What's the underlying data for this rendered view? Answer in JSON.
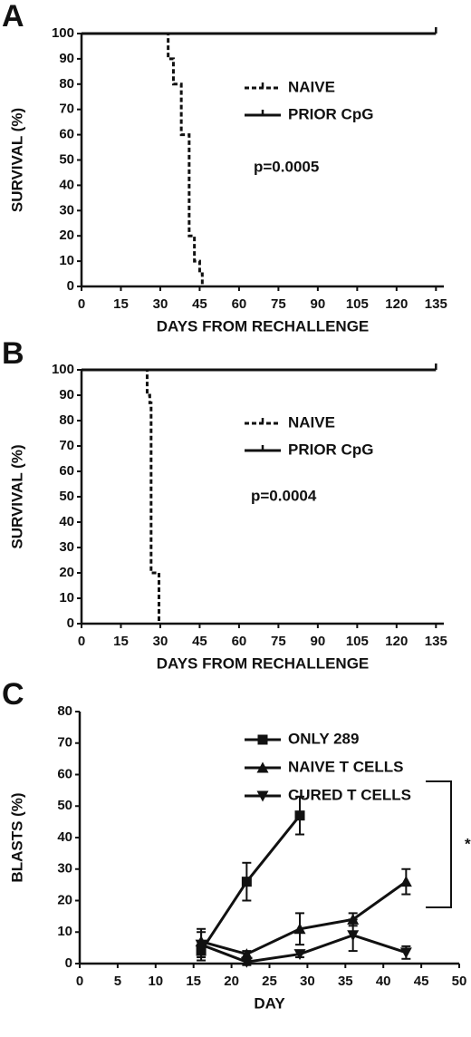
{
  "chart_data": [
    {
      "type": "step",
      "label": "A",
      "xlabel": "DAYS FROM RECHALLENGE",
      "ylabel": "SURVIVAL (%)",
      "xlim": [
        0,
        138
      ],
      "xticks": [
        0,
        15,
        30,
        45,
        60,
        75,
        90,
        105,
        120,
        135
      ],
      "ylim": [
        0,
        100
      ],
      "yticks": [
        0,
        10,
        20,
        30,
        40,
        50,
        60,
        70,
        80,
        90,
        100
      ],
      "annotations": [
        "p=0.0005"
      ],
      "series": [
        {
          "name": "NAIVE",
          "color": "#111111",
          "style": "dashed",
          "x": [
            32,
            33,
            35,
            38,
            41,
            43,
            45,
            46
          ],
          "values": [
            100,
            90,
            80,
            60,
            20,
            10,
            5,
            0
          ]
        },
        {
          "name": "PRIOR CpG",
          "color": "#111111",
          "style": "solid",
          "x": [
            0,
            135
          ],
          "values": [
            100,
            100
          ]
        }
      ]
    },
    {
      "type": "step",
      "label": "B",
      "xlabel": "DAYS FROM RECHALLENGE",
      "ylabel": "SURVIVAL (%)",
      "xlim": [
        0,
        138
      ],
      "xticks": [
        0,
        15,
        30,
        45,
        60,
        75,
        90,
        105,
        120,
        135
      ],
      "ylim": [
        0,
        100
      ],
      "yticks": [
        0,
        10,
        20,
        30,
        40,
        50,
        60,
        70,
        80,
        90,
        100
      ],
      "annotations": [
        "p=0.0004"
      ],
      "series": [
        {
          "name": "NAIVE",
          "color": "#111111",
          "style": "dashed",
          "x": [
            24,
            25,
            26,
            26.5,
            29.5
          ],
          "values": [
            100,
            90,
            87,
            20,
            0
          ]
        },
        {
          "name": "PRIOR CpG",
          "color": "#111111",
          "style": "solid",
          "x": [
            0,
            135
          ],
          "values": [
            100,
            100
          ]
        }
      ]
    },
    {
      "type": "line",
      "label": "C",
      "xlabel": "DAY",
      "ylabel": "BLASTS (%)",
      "xlim": [
        0,
        50
      ],
      "xticks": [
        0,
        5,
        10,
        15,
        20,
        25,
        30,
        35,
        40,
        45,
        50
      ],
      "ylim": [
        0,
        80
      ],
      "yticks": [
        0,
        10,
        20,
        30,
        40,
        50,
        60,
        70,
        80
      ],
      "annotations": [
        "*"
      ],
      "series": [
        {
          "name": "ONLY 289",
          "color": "#111111",
          "marker": "square",
          "x": [
            16,
            22,
            29
          ],
          "values": [
            4,
            26,
            47
          ],
          "err": [
            3,
            6,
            6
          ]
        },
        {
          "name": "NAIVE T CELLS",
          "color": "#111111",
          "marker": "triangle-up",
          "x": [
            16,
            22,
            29,
            36,
            43
          ],
          "values": [
            7,
            3,
            11,
            14,
            26
          ],
          "err": [
            4,
            1,
            5,
            2,
            4
          ]
        },
        {
          "name": "CURED T CELLS",
          "color": "#111111",
          "marker": "triangle-down",
          "x": [
            16,
            22,
            29,
            36,
            43
          ],
          "values": [
            6,
            0.5,
            3,
            9,
            3.5
          ],
          "err": [
            4,
            1,
            1,
            5,
            2
          ]
        }
      ]
    }
  ]
}
